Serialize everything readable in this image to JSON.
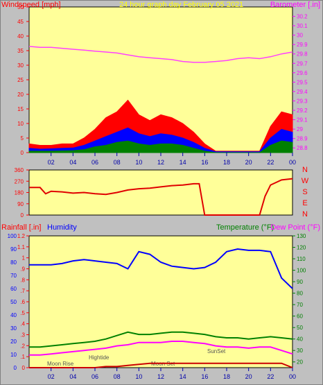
{
  "header": {
    "left_label": "Windspeed [mph]",
    "title": "24 hour graph day   February 05 2021",
    "right_label": "Barometer [.in]"
  },
  "colors": {
    "plot_bg": "#ffff99",
    "frame_bg": "#c0c0c0",
    "windspeed_max": "#ff0000",
    "windspeed_avg": "#0000ff",
    "windspeed_min": "#008000",
    "barometer": "#ff40ff",
    "direction": "#e00000",
    "humidity": "#0000ff",
    "rainfall": "#cc0000",
    "temperature": "#008000",
    "dewpoint": "#ff00ff",
    "left_axis_red": "#ff0000",
    "compass": "#ff0000",
    "title_text": "#ffff00"
  },
  "x_axis_ticks": [
    "02",
    "04",
    "06",
    "08",
    "10",
    "12",
    "14",
    "16",
    "18",
    "20",
    "22",
    "00"
  ],
  "compass": [
    "N",
    "W",
    "S",
    "E",
    "N"
  ],
  "lower_header": {
    "rainfall": "Rainfall [.in]",
    "humidity": "Humidity",
    "temperature": "Temperature (°F)",
    "dewpoint": "Dew Point (°F)"
  },
  "annotations": {
    "moon_rise": "Moon Rise",
    "hightide": "Hightide",
    "moon_set": "Moon Set",
    "sunset": "SunSet"
  },
  "chart_data": [
    {
      "type": "area",
      "title": "24 hour graph day   February 05 2021",
      "ylabel": "Windspeed [mph]",
      "y2label": "Barometer [.in]",
      "ylim": [
        0,
        50
      ],
      "y2lim": [
        28.75,
        30.3
      ],
      "yticks": [
        0,
        5,
        10,
        15,
        20,
        25,
        30,
        35,
        40,
        45,
        50
      ],
      "y2ticks": [
        28.8,
        28.9,
        29,
        29.1,
        29.2,
        29.3,
        29.4,
        29.5,
        29.6,
        29.7,
        29.8,
        29.9,
        30,
        30.1,
        30.2
      ],
      "x": [
        0,
        1,
        2,
        3,
        4,
        5,
        6,
        7,
        8,
        9,
        10,
        11,
        12,
        13,
        14,
        15,
        16,
        17,
        18,
        19,
        20,
        21,
        22,
        23,
        24
      ],
      "series": [
        {
          "key": "windspeed_max",
          "values": [
            3,
            2.5,
            2.5,
            3,
            3,
            5,
            8,
            12,
            14,
            18,
            13,
            11,
            13,
            12,
            10,
            7,
            3,
            0.5,
            0.5,
            0.5,
            0.5,
            0.5,
            9,
            14,
            13
          ]
        },
        {
          "key": "windspeed_avg",
          "values": [
            1.5,
            1.2,
            1.3,
            1.5,
            1.6,
            2.5,
            4,
            5.5,
            7,
            8.5,
            6.5,
            5.5,
            6.5,
            6,
            5,
            3.5,
            1.5,
            0.3,
            0.3,
            0.3,
            0.3,
            0.3,
            5,
            8,
            7
          ]
        },
        {
          "key": "windspeed_min",
          "values": [
            0.5,
            0.5,
            0.5,
            0.6,
            0.7,
            1,
            2,
            2.5,
            3.5,
            4,
            3,
            2.5,
            3,
            3,
            2.5,
            1.5,
            0.5,
            0,
            0,
            0,
            0,
            0,
            2.5,
            4,
            3.5
          ]
        },
        {
          "key": "barometer",
          "values": [
            29.88,
            29.87,
            29.87,
            29.86,
            29.85,
            29.84,
            29.83,
            29.82,
            29.81,
            29.79,
            29.77,
            29.76,
            29.75,
            29.74,
            29.72,
            29.71,
            29.71,
            29.72,
            29.73,
            29.75,
            29.76,
            29.75,
            29.77,
            29.8,
            29.82
          ]
        }
      ]
    },
    {
      "type": "line",
      "ylabel": "Wind Direction",
      "ylim": [
        0,
        360
      ],
      "yticks": [
        0,
        90,
        180,
        270,
        360
      ],
      "x": [
        0,
        1,
        1.5,
        2,
        3,
        4,
        5,
        6,
        7,
        8,
        9,
        10,
        11,
        12,
        13,
        14,
        15,
        15.5,
        16,
        17,
        18,
        19,
        20,
        21,
        21.5,
        22,
        23,
        24
      ],
      "series": [
        {
          "key": "direction",
          "values": [
            220,
            220,
            170,
            190,
            185,
            175,
            180,
            170,
            165,
            180,
            200,
            210,
            215,
            225,
            235,
            240,
            250,
            250,
            0,
            0,
            0,
            0,
            0,
            0,
            150,
            240,
            280,
            290
          ]
        }
      ]
    },
    {
      "type": "line",
      "ylabel": "Rainfall [.in]",
      "y2label": "Humidity",
      "y3label": "Temperature (°F)",
      "y4label": "Dew Point (°F)",
      "rain_lim": [
        0,
        1.2
      ],
      "rain_ticks": [
        0,
        0.1,
        0.2,
        0.3,
        0.4,
        0.5,
        0.6,
        0.7,
        0.8,
        0.9,
        1,
        1.1,
        1.2
      ],
      "hum_lim": [
        0,
        100
      ],
      "hum_ticks": [
        0,
        10,
        20,
        30,
        40,
        50,
        60,
        70,
        80,
        90,
        100
      ],
      "temp_lim": [
        15,
        130
      ],
      "temp_ticks": [
        20,
        30,
        40,
        50,
        60,
        70,
        80,
        90,
        100,
        110,
        120,
        130
      ],
      "x": [
        0,
        1,
        2,
        3,
        4,
        5,
        6,
        7,
        8,
        9,
        10,
        11,
        12,
        13,
        14,
        15,
        16,
        17,
        18,
        19,
        20,
        21,
        22,
        23,
        24
      ],
      "series": [
        {
          "key": "humidity",
          "values": [
            78,
            78,
            78,
            79,
            81,
            82,
            81,
            80,
            79,
            75,
            88,
            86,
            80,
            77,
            76,
            75,
            76,
            80,
            88,
            90,
            89,
            89,
            88,
            68,
            60
          ]
        },
        {
          "key": "rainfall",
          "values": [
            0,
            0,
            0,
            0,
            0,
            0,
            0,
            0.01,
            0.01,
            0.02,
            0.03,
            0.04,
            0.04,
            0.04,
            0.04,
            0.04,
            0.04,
            0.04,
            0.04,
            0.04,
            0.04,
            0.04,
            0.04,
            0.04,
            0
          ]
        },
        {
          "key": "temperature",
          "values": [
            33,
            33,
            34,
            35,
            36,
            37,
            38,
            40,
            43,
            46,
            44,
            44,
            45,
            46,
            46,
            45,
            44,
            42,
            41,
            41,
            40,
            41,
            42,
            41,
            40
          ]
        },
        {
          "key": "dewpoint",
          "values": [
            26,
            26,
            27,
            28,
            29,
            30,
            31,
            32,
            34,
            35,
            37,
            37,
            37,
            38,
            38,
            37,
            36,
            34,
            33,
            33,
            32,
            33,
            33,
            30,
            27
          ]
        }
      ]
    }
  ]
}
